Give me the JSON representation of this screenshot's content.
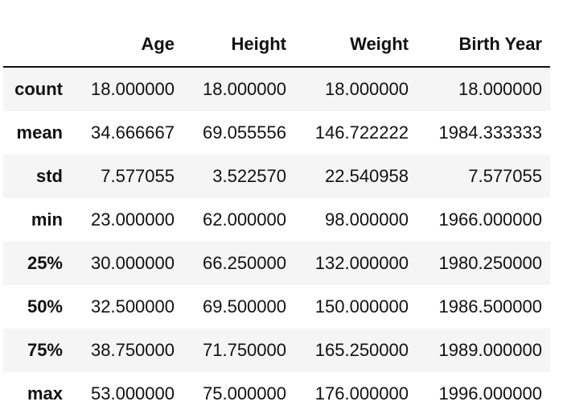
{
  "table": {
    "columns": [
      "",
      "Age",
      "Height",
      "Weight",
      "Birth Year"
    ],
    "rows": [
      {
        "label": "count",
        "values": [
          "18.000000",
          "18.000000",
          "18.000000",
          "18.000000"
        ]
      },
      {
        "label": "mean",
        "values": [
          "34.666667",
          "69.055556",
          "146.722222",
          "1984.333333"
        ]
      },
      {
        "label": "std",
        "values": [
          "7.577055",
          "3.522570",
          "22.540958",
          "7.577055"
        ]
      },
      {
        "label": "min",
        "values": [
          "23.000000",
          "62.000000",
          "98.000000",
          "1966.000000"
        ]
      },
      {
        "label": "25%",
        "values": [
          "30.000000",
          "66.250000",
          "132.000000",
          "1980.250000"
        ]
      },
      {
        "label": "50%",
        "values": [
          "32.500000",
          "69.500000",
          "150.000000",
          "1986.500000"
        ]
      },
      {
        "label": "75%",
        "values": [
          "38.750000",
          "71.750000",
          "165.250000",
          "1989.000000"
        ]
      },
      {
        "label": "max",
        "values": [
          "53.000000",
          "75.000000",
          "176.000000",
          "1996.000000"
        ]
      }
    ]
  }
}
